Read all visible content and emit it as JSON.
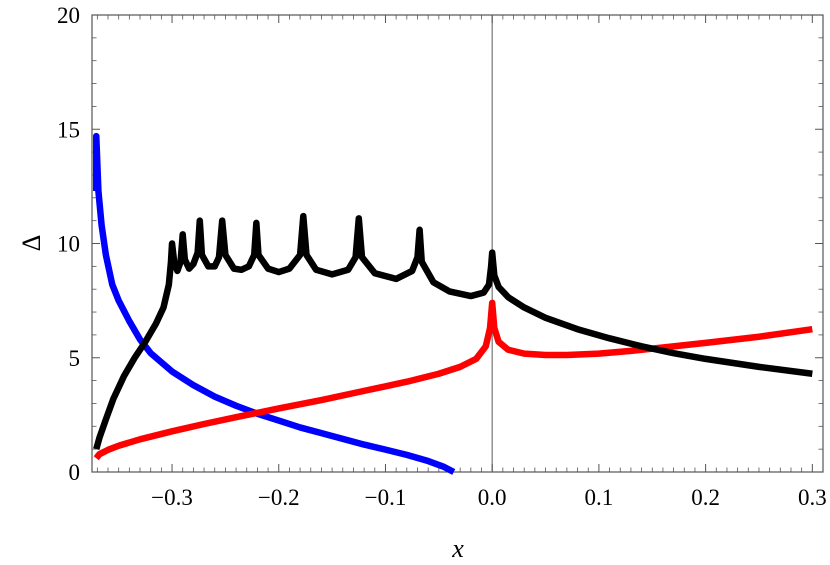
{
  "chart_data": {
    "type": "line",
    "xlabel": "x",
    "ylabel": "Δ",
    "xlim": [
      -0.375,
      0.31
    ],
    "ylim": [
      0,
      20
    ],
    "xticks": [
      -0.3,
      -0.2,
      -0.1,
      0.0,
      0.1,
      0.2,
      0.3
    ],
    "xtick_labels": [
      "−0.3",
      "−0.2",
      "−0.1",
      "0.0",
      "0.1",
      "0.2",
      "0.3"
    ],
    "yticks": [
      0,
      5,
      10,
      15,
      20
    ],
    "ytick_labels": [
      "0",
      "5",
      "10",
      "15",
      "20"
    ],
    "vertical_reference_line_x": 0,
    "grid": false,
    "series": [
      {
        "color": "#0000ff",
        "points": [
          [
            -0.371,
            12.3
          ],
          [
            -0.371,
            14.7
          ],
          [
            -0.369,
            12.3
          ],
          [
            -0.366,
            10.8
          ],
          [
            -0.362,
            9.5
          ],
          [
            -0.356,
            8.2
          ],
          [
            -0.35,
            7.5
          ],
          [
            -0.34,
            6.6
          ],
          [
            -0.33,
            5.8
          ],
          [
            -0.32,
            5.2
          ],
          [
            -0.3,
            4.4
          ],
          [
            -0.28,
            3.8
          ],
          [
            -0.26,
            3.3
          ],
          [
            -0.24,
            2.9
          ],
          [
            -0.22,
            2.55
          ],
          [
            -0.2,
            2.25
          ],
          [
            -0.18,
            1.95
          ],
          [
            -0.16,
            1.7
          ],
          [
            -0.14,
            1.45
          ],
          [
            -0.12,
            1.2
          ],
          [
            -0.1,
            0.98
          ],
          [
            -0.08,
            0.75
          ],
          [
            -0.06,
            0.48
          ],
          [
            -0.045,
            0.22
          ],
          [
            -0.036,
            0.0
          ]
        ]
      },
      {
        "color": "#ff0000",
        "points": [
          [
            -0.371,
            0.6
          ],
          [
            -0.368,
            0.78
          ],
          [
            -0.36,
            0.97
          ],
          [
            -0.35,
            1.15
          ],
          [
            -0.33,
            1.43
          ],
          [
            -0.3,
            1.78
          ],
          [
            -0.27,
            2.1
          ],
          [
            -0.24,
            2.4
          ],
          [
            -0.2,
            2.78
          ],
          [
            -0.16,
            3.15
          ],
          [
            -0.12,
            3.55
          ],
          [
            -0.08,
            3.95
          ],
          [
            -0.05,
            4.3
          ],
          [
            -0.03,
            4.6
          ],
          [
            -0.015,
            4.95
          ],
          [
            -0.006,
            5.5
          ],
          [
            -0.002,
            6.3
          ],
          [
            0.0,
            7.4
          ],
          [
            0.002,
            6.3
          ],
          [
            0.006,
            5.7
          ],
          [
            0.015,
            5.35
          ],
          [
            0.03,
            5.18
          ],
          [
            0.05,
            5.12
          ],
          [
            0.07,
            5.12
          ],
          [
            0.1,
            5.18
          ],
          [
            0.13,
            5.3
          ],
          [
            0.16,
            5.45
          ],
          [
            0.2,
            5.65
          ],
          [
            0.25,
            5.92
          ],
          [
            0.3,
            6.25
          ]
        ]
      },
      {
        "color": "#000000",
        "points": [
          [
            -0.371,
            1.0
          ],
          [
            -0.368,
            1.5
          ],
          [
            -0.362,
            2.3
          ],
          [
            -0.355,
            3.2
          ],
          [
            -0.345,
            4.2
          ],
          [
            -0.335,
            5.0
          ],
          [
            -0.325,
            5.7
          ],
          [
            -0.315,
            6.5
          ],
          [
            -0.308,
            7.2
          ],
          [
            -0.303,
            8.2
          ],
          [
            -0.301,
            9.2
          ],
          [
            -0.3,
            10.0
          ],
          [
            -0.298,
            9.2
          ],
          [
            -0.295,
            8.8
          ],
          [
            -0.292,
            9.2
          ],
          [
            -0.29,
            10.4
          ],
          [
            -0.288,
            9.3
          ],
          [
            -0.284,
            8.9
          ],
          [
            -0.28,
            9.1
          ],
          [
            -0.276,
            9.6
          ],
          [
            -0.274,
            11.0
          ],
          [
            -0.272,
            9.5
          ],
          [
            -0.266,
            9.0
          ],
          [
            -0.26,
            9.0
          ],
          [
            -0.256,
            9.4
          ],
          [
            -0.253,
            11.0
          ],
          [
            -0.25,
            9.5
          ],
          [
            -0.242,
            8.9
          ],
          [
            -0.235,
            8.85
          ],
          [
            -0.228,
            9.0
          ],
          [
            -0.223,
            9.5
          ],
          [
            -0.221,
            10.9
          ],
          [
            -0.219,
            9.5
          ],
          [
            -0.21,
            8.9
          ],
          [
            -0.2,
            8.75
          ],
          [
            -0.19,
            8.9
          ],
          [
            -0.18,
            9.5
          ],
          [
            -0.177,
            11.2
          ],
          [
            -0.174,
            9.5
          ],
          [
            -0.165,
            8.85
          ],
          [
            -0.15,
            8.65
          ],
          [
            -0.135,
            8.85
          ],
          [
            -0.128,
            9.4
          ],
          [
            -0.125,
            11.1
          ],
          [
            -0.122,
            9.4
          ],
          [
            -0.11,
            8.7
          ],
          [
            -0.09,
            8.45
          ],
          [
            -0.075,
            8.8
          ],
          [
            -0.07,
            9.4
          ],
          [
            -0.068,
            10.6
          ],
          [
            -0.066,
            9.2
          ],
          [
            -0.055,
            8.3
          ],
          [
            -0.04,
            7.9
          ],
          [
            -0.02,
            7.7
          ],
          [
            -0.008,
            7.85
          ],
          [
            -0.003,
            8.2
          ],
          [
            -0.001,
            9.0
          ],
          [
            0.0,
            9.6
          ],
          [
            0.002,
            8.6
          ],
          [
            0.006,
            8.1
          ],
          [
            0.015,
            7.65
          ],
          [
            0.03,
            7.2
          ],
          [
            0.05,
            6.75
          ],
          [
            0.08,
            6.25
          ],
          [
            0.11,
            5.85
          ],
          [
            0.14,
            5.5
          ],
          [
            0.17,
            5.2
          ],
          [
            0.2,
            4.95
          ],
          [
            0.25,
            4.6
          ],
          [
            0.3,
            4.3
          ]
        ]
      }
    ]
  }
}
